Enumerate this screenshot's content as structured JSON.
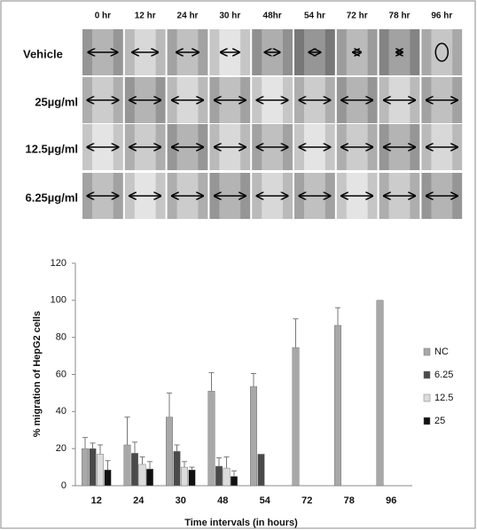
{
  "image_grid": {
    "columns": [
      "0 hr",
      "12 hr",
      "24 hr",
      "30 hr",
      "48hr",
      "54 hr",
      "72 hr",
      "78 hr",
      "96 hr"
    ],
    "rows": [
      "Vehicle",
      "25µg/ml",
      "12.5µg/ml",
      "6.25µg/ml"
    ]
  },
  "chart_data": {
    "type": "bar",
    "x_label": "Time intervals (in hours)",
    "y_label": "% migration of HepG2 cells",
    "categories": [
      "12",
      "24",
      "30",
      "48",
      "54",
      "72",
      "78",
      "96"
    ],
    "series": [
      {
        "name": "NC",
        "color": "#a8a8a8",
        "values": [
          20,
          22,
          37,
          51,
          53.5,
          74.5,
          86.5,
          100
        ],
        "errors": [
          6,
          15,
          13,
          10,
          7,
          15.5,
          9.5,
          0
        ]
      },
      {
        "name": "6.25",
        "color": "#4a4a4a",
        "values": [
          20,
          17.5,
          18.5,
          10.5,
          17,
          null,
          null,
          null
        ],
        "errors": [
          3,
          6,
          3.5,
          4.5,
          0,
          null,
          null,
          null
        ]
      },
      {
        "name": "12.5",
        "color": "#dcdcdc",
        "values": [
          17,
          11.5,
          10,
          9.5,
          null,
          null,
          null,
          null
        ],
        "errors": [
          5,
          4,
          3,
          6,
          null,
          null,
          null,
          null
        ]
      },
      {
        "name": "25",
        "color": "#111111",
        "values": [
          8.5,
          9,
          8.5,
          5,
          null,
          null,
          null,
          null
        ],
        "errors": [
          5,
          4,
          1.5,
          3,
          null,
          null,
          null,
          null
        ]
      }
    ],
    "ylim": [
      0,
      120
    ],
    "yticks": [
      0,
      20,
      40,
      60,
      80,
      100,
      120
    ],
    "legend": "right"
  }
}
